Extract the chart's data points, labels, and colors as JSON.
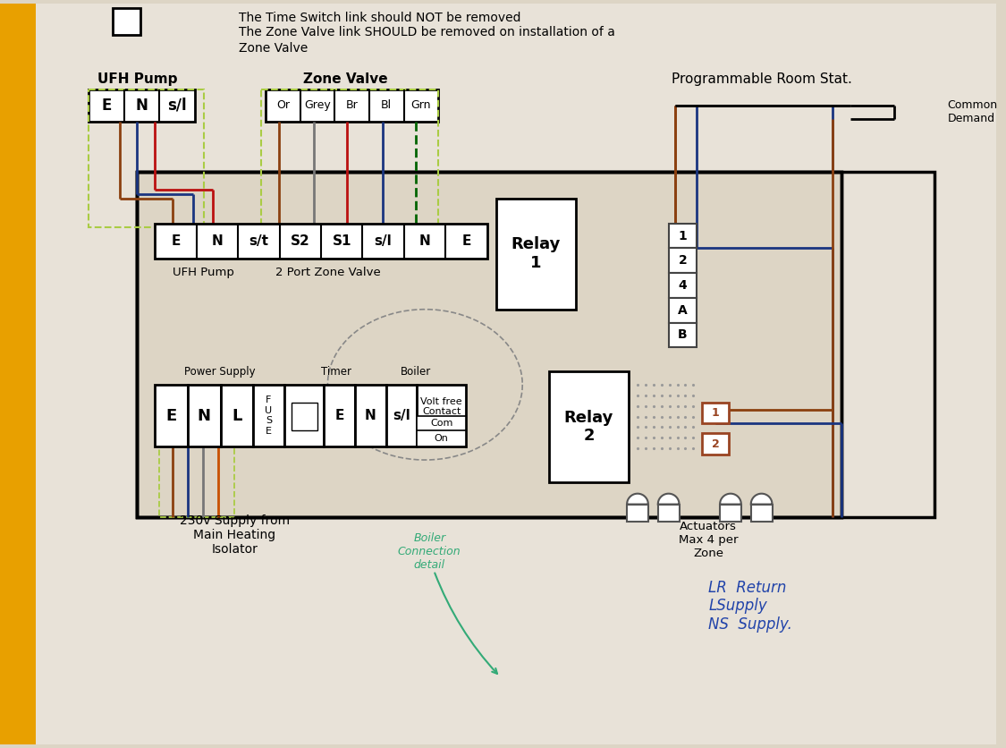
{
  "bg_left_color": "#d4960a",
  "bg_paper_color": "#ddd5c5",
  "paper_white": "#e8e2d8",
  "wire_brown": "#8B4010",
  "wire_blue": "#1a3580",
  "wire_orange": "#c85000",
  "wire_grey": "#777777",
  "wire_green_dark": "#006400",
  "wire_red": "#bb1111",
  "dashed_box_color": "#aacc44",
  "terminal_bg": "#d0ccc0",
  "title1": "The Time Switch link should NOT be removed",
  "title2": "The Zone Valve link SHOULD be removed on installation of a",
  "title3": "Zone Valve",
  "ufh_pump_label": "UFH Pump",
  "zone_valve_label": "Zone Valve",
  "room_stat_label": "Programmable Room Stat.",
  "common_demand": "Common\nDemand",
  "pump_terminals": [
    "E",
    "N",
    "s/l"
  ],
  "zv_terminals": [
    "Or",
    "Grey",
    "Br",
    "Bl",
    "Grn"
  ],
  "top_row_terminals": [
    "E",
    "N",
    "s/t",
    "S2",
    "S1",
    "s/l",
    "N",
    "E"
  ],
  "ufh_pump_sub": "UFH Pump",
  "zone_valve_sub": "2 Port Zone Valve",
  "relay1_label": "Relay\n1",
  "relay2_label": "Relay\n2",
  "power_supply_label": "Power Supply",
  "timer_label": "Timer",
  "boiler_label": "Boiler",
  "com_label": "Com",
  "on_label": "On",
  "volt_free": "Volt free\nContact",
  "fuse_label": "F\nU\nS\nE",
  "terminals_12ab": [
    "1",
    "2",
    "4",
    "A",
    "B"
  ],
  "relay_out_terminals": [
    "1",
    "2"
  ],
  "actuators_label": "Actuators\nMax 4 per\nZone",
  "supply_label": "230v Supply from\nMain Heating\nIsolator",
  "boiler_detail_label": "Boiler\nConnection\ndetail",
  "handwriting": "LR  Return\nLSupply\nNS  Supply."
}
